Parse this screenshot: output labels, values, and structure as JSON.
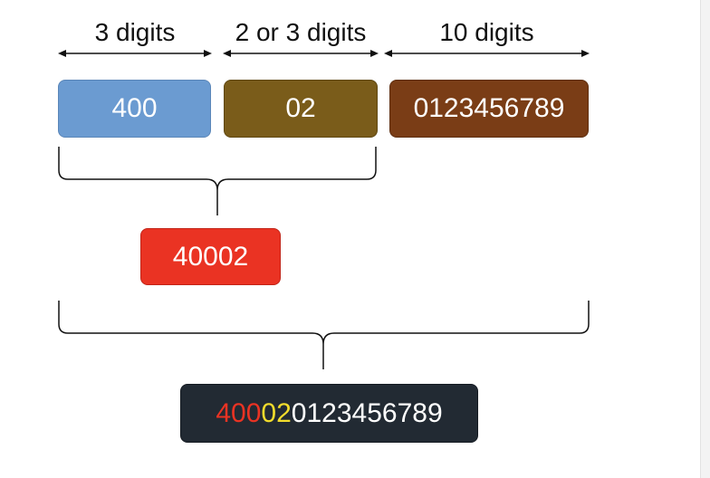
{
  "labels": {
    "first": "3 digits",
    "second": "2 or 3 digits",
    "third": "10 digits"
  },
  "segments": {
    "first": {
      "value": "400",
      "color": "#6b9bd1"
    },
    "second": {
      "value": "02",
      "color": "#7a5c1a"
    },
    "third": {
      "value": "0123456789",
      "color": "#7a3d16"
    }
  },
  "combined": {
    "value": "40002",
    "color": "#ea3323"
  },
  "result": {
    "part1": "400",
    "part2": "02",
    "part3": "0123456789",
    "colors": {
      "part1": "#ea3323",
      "part2": "#f2dc2c",
      "part3": "#ffffff",
      "background": "#222a33"
    }
  }
}
